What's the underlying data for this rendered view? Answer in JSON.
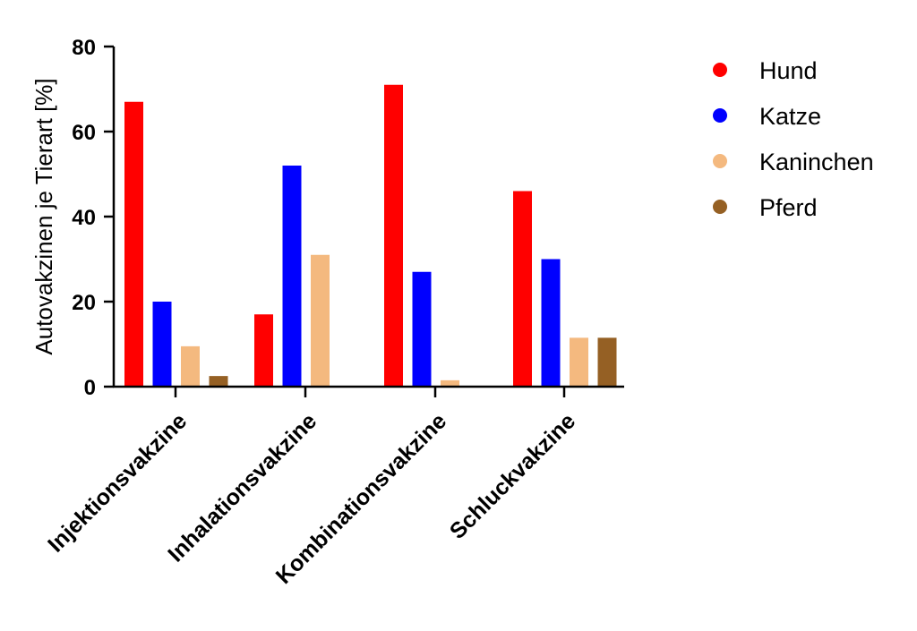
{
  "chart_data": {
    "type": "bar",
    "title": "",
    "xlabel": "",
    "ylabel": "Autovakzinen je Tierart [%]",
    "ylim": [
      0,
      80
    ],
    "yticks": [
      0,
      20,
      40,
      60,
      80
    ],
    "grid": false,
    "legend_position": "right",
    "categories": [
      "Injektionsvakzine",
      "Inhalationsvakzine",
      "Kombinationsvakzine",
      "Schluckvakzine"
    ],
    "series": [
      {
        "name": "Hund",
        "color": "#ff0000",
        "values": [
          67,
          17,
          71,
          46
        ]
      },
      {
        "name": "Katze",
        "color": "#0000ff",
        "values": [
          20,
          52,
          27,
          30
        ]
      },
      {
        "name": "Kaninchen",
        "color": "#f4b97f",
        "values": [
          9.5,
          31,
          1.5,
          11.5
        ]
      },
      {
        "name": "Pferd",
        "color": "#956024",
        "values": [
          2.5,
          0,
          0,
          11.5
        ]
      }
    ]
  }
}
